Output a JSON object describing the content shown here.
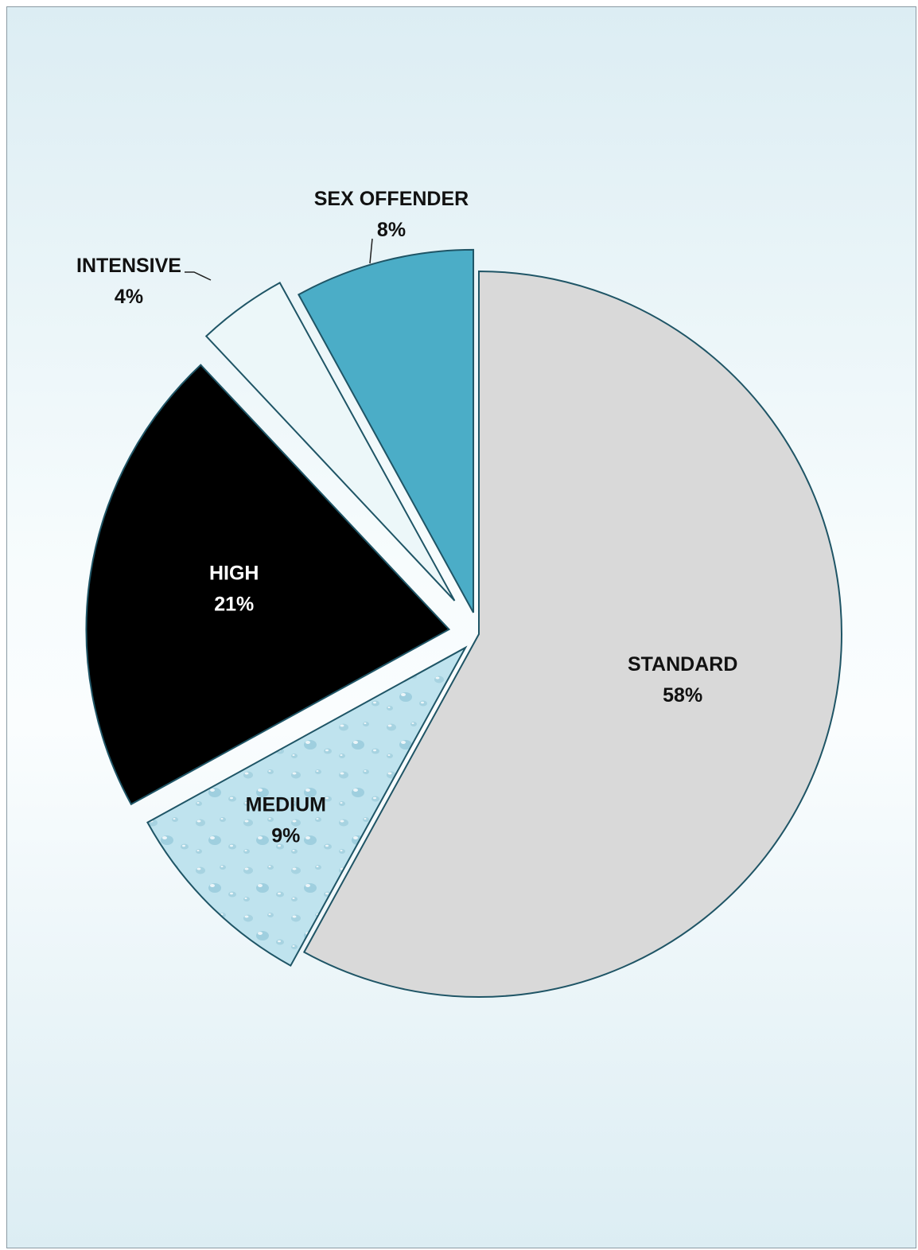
{
  "chart_data": {
    "type": "pie",
    "slices": [
      {
        "label": "STANDARD",
        "pct_label": "58%",
        "value": 58,
        "color": "#d9d9d9",
        "text_color": "#111111",
        "exploded": false
      },
      {
        "label": "MEDIUM",
        "pct_label": "9%",
        "value": 9,
        "color": "#bfe3ee",
        "text_color": "#111111",
        "exploded": true,
        "pattern": "water-droplets"
      },
      {
        "label": "HIGH",
        "pct_label": "21%",
        "value": 21,
        "color": "#000000",
        "text_color": "#ffffff",
        "exploded": true
      },
      {
        "label": "INTENSIVE",
        "pct_label": "4%",
        "value": 4,
        "color": "#ecf7f9",
        "text_color": "#111111",
        "exploded": true,
        "callout": true
      },
      {
        "label": "SEX OFFENDER",
        "pct_label": "8%",
        "value": 8,
        "color": "#4badc7",
        "text_color": "#111111",
        "exploded": true,
        "callout": true
      }
    ],
    "slice_outline_color": "#1f5566",
    "legend": "none"
  }
}
